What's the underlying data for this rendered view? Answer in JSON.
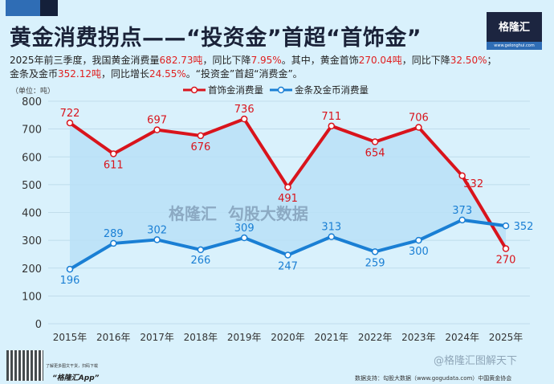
{
  "title": "黄金消费拐点——“投资金”首超“首饰金”",
  "logo": {
    "name": "格隆汇",
    "url": "www.gelonghui.com"
  },
  "subtitle": {
    "line1": [
      {
        "t": "2025年前三季度，我国黄金消费量"
      },
      {
        "t": "682.73吨",
        "red": true
      },
      {
        "t": "，同比下降"
      },
      {
        "t": "7.95%",
        "red": true
      },
      {
        "t": "。其中，黄金首饰"
      },
      {
        "t": "270.04吨",
        "red": true
      },
      {
        "t": "，同比下降"
      },
      {
        "t": "32.50%",
        "red": true
      },
      {
        "t": "；"
      }
    ],
    "line2": [
      {
        "t": "金条及金币"
      },
      {
        "t": "352.12吨",
        "red": true
      },
      {
        "t": "，同比增长"
      },
      {
        "t": "24.55%",
        "red": true
      },
      {
        "t": "。“投资金”首超“消费金”。"
      }
    ]
  },
  "chart_data": {
    "type": "line",
    "unit_label": "（单位：吨）",
    "categories": [
      "2015年",
      "2016年",
      "2017年",
      "2018年",
      "2019年",
      "2020年",
      "2021年",
      "2022年",
      "2023年",
      "2024年",
      "2025年"
    ],
    "series": [
      {
        "name": "首饰金消费量",
        "color": "#d9141c",
        "values": [
          722,
          611,
          697,
          676,
          736,
          491,
          711,
          654,
          706,
          532,
          270
        ]
      },
      {
        "name": "金条及金币消费量",
        "color": "#1a7fd4",
        "values": [
          196,
          289,
          302,
          266,
          309,
          247,
          313,
          259,
          300,
          373,
          352
        ]
      }
    ],
    "ylim": [
      0,
      800
    ],
    "yticks": [
      0,
      100,
      200,
      300,
      400,
      500,
      600,
      700,
      800
    ],
    "grid": true,
    "legend": "top-center",
    "fill_between": "#b9e0f7"
  },
  "footer": {
    "qr_note": "了解更多图文干货，扫码下载",
    "app": "“格隆汇App”",
    "source": "数据支持：勾股大数据（www.gogudata.com）中国黄金协会",
    "watermark": "@格隆汇图解天下",
    "chart_watermark": "格隆汇  勾股大数据"
  }
}
